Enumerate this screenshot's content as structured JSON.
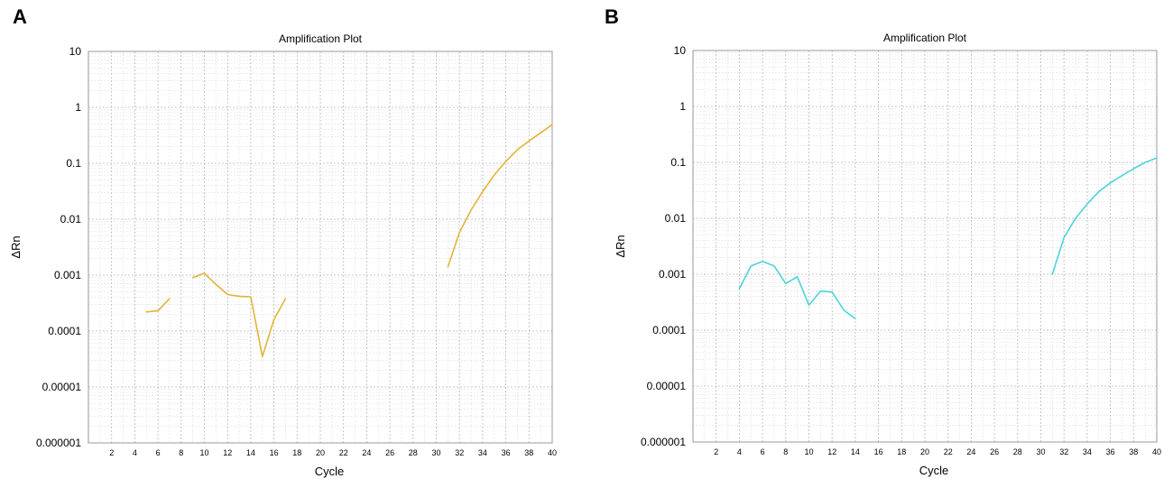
{
  "panels": [
    {
      "letter": "A",
      "chart_data": {
        "type": "line",
        "title": "Amplification Plot",
        "xlabel": "Cycle",
        "ylabel": "ΔRn",
        "yscale": "log",
        "xlim": [
          0,
          40
        ],
        "ylim": [
          1e-06,
          10
        ],
        "yticks": [
          1e-06,
          1e-05,
          0.0001,
          0.001,
          0.01,
          0.1,
          1,
          10
        ],
        "ytick_labels": [
          "0.000001",
          "0.00001",
          "0.0001",
          "0.001",
          "0.01",
          "0.1",
          "1",
          "10"
        ],
        "xticks": [
          2,
          4,
          6,
          8,
          10,
          12,
          14,
          16,
          18,
          20,
          22,
          24,
          26,
          28,
          30,
          32,
          34,
          36,
          38,
          40
        ],
        "grid": true,
        "series": [
          {
            "color": "#E2B43A",
            "segments": [
              [
                [
                  5,
                  0.00022
                ],
                [
                  6,
                  0.00023
                ],
                [
                  7,
                  0.00038
                ]
              ],
              [
                [
                  9,
                  0.0009
                ],
                [
                  10,
                  0.00108
                ],
                [
                  11,
                  0.00068
                ],
                [
                  12,
                  0.00045
                ],
                [
                  13,
                  0.00042
                ],
                [
                  14,
                  0.00041
                ],
                [
                  15,
                  3.5e-05
                ],
                [
                  16,
                  0.00016
                ],
                [
                  17,
                  0.00038
                ]
              ],
              [
                [
                  31,
                  0.0014
                ],
                [
                  32,
                  0.0058
                ],
                [
                  33,
                  0.0145
                ],
                [
                  34,
                  0.031
                ],
                [
                  35,
                  0.062
                ],
                [
                  36,
                  0.108
                ],
                [
                  37,
                  0.175
                ],
                [
                  38,
                  0.25
                ],
                [
                  39,
                  0.35
                ],
                [
                  40,
                  0.49
                ]
              ]
            ]
          }
        ]
      }
    },
    {
      "letter": "B",
      "chart_data": {
        "type": "line",
        "title": "Amplification Plot",
        "xlabel": "Cycle",
        "ylabel": "ΔRn",
        "yscale": "log",
        "xlim": [
          0,
          40
        ],
        "ylim": [
          1e-06,
          10
        ],
        "yticks": [
          1e-06,
          1e-05,
          0.0001,
          0.001,
          0.01,
          0.1,
          1,
          10
        ],
        "ytick_labels": [
          "0.000001",
          "0.00001",
          "0.0001",
          "0.001",
          "0.01",
          "0.1",
          "1",
          "10"
        ],
        "xticks": [
          2,
          4,
          6,
          8,
          10,
          12,
          14,
          16,
          18,
          20,
          22,
          24,
          26,
          28,
          30,
          32,
          34,
          36,
          38,
          40
        ],
        "grid": true,
        "series": [
          {
            "color": "#4DD4D8",
            "segments": [
              [
                [
                  4,
                  0.00055
                ],
                [
                  5,
                  0.0014
                ],
                [
                  6,
                  0.0017
                ],
                [
                  7,
                  0.0014
                ],
                [
                  8,
                  0.00068
                ],
                [
                  9,
                  0.0009
                ],
                [
                  10,
                  0.00028
                ],
                [
                  11,
                  0.0005
                ],
                [
                  12,
                  0.00048
                ],
                [
                  13,
                  0.00023
                ],
                [
                  14,
                  0.00016
                ]
              ],
              [
                [
                  31,
                  0.001
                ],
                [
                  32,
                  0.0045
                ],
                [
                  33,
                  0.01
                ],
                [
                  34,
                  0.018
                ],
                [
                  35,
                  0.03
                ],
                [
                  36,
                  0.043
                ],
                [
                  37,
                  0.058
                ],
                [
                  38,
                  0.077
                ],
                [
                  39,
                  0.1
                ],
                [
                  40,
                  0.12
                ]
              ]
            ]
          }
        ]
      }
    }
  ]
}
